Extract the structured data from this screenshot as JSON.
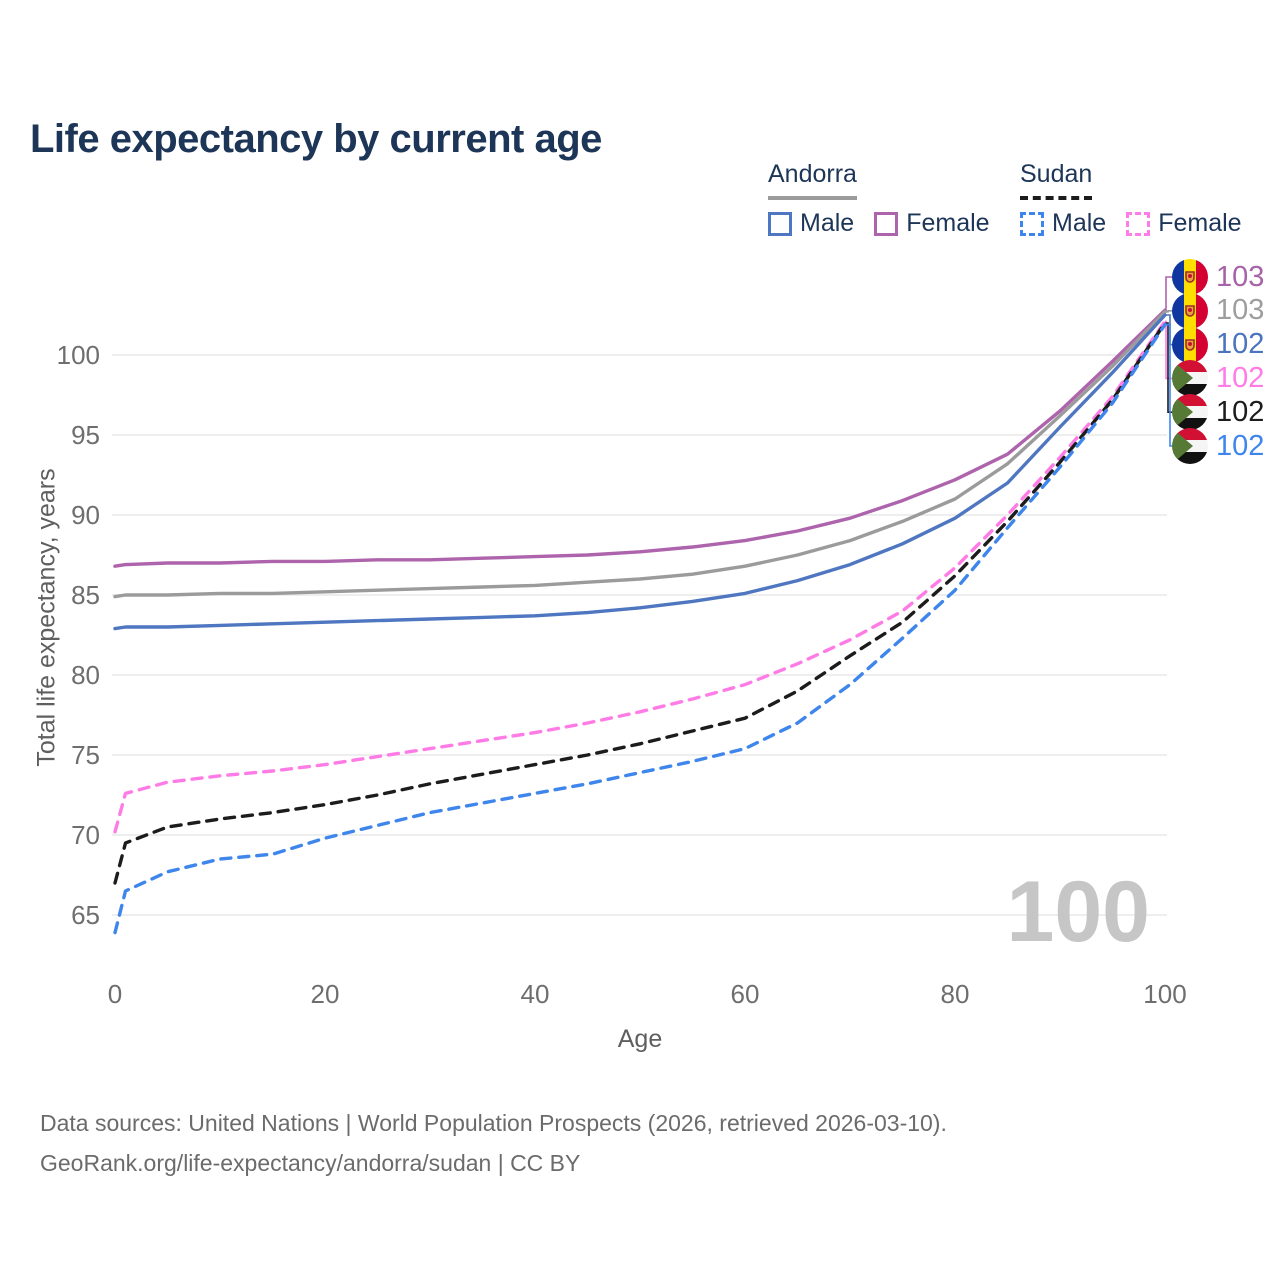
{
  "title": "Life expectancy by current age",
  "legend": {
    "groups": [
      {
        "country": "Andorra",
        "style": "solid",
        "items": [
          {
            "label": "Male",
            "color": "#4f76c0"
          },
          {
            "label": "Female",
            "color": "#ae64ac"
          }
        ]
      },
      {
        "country": "Sudan",
        "style": "dashed",
        "items": [
          {
            "label": "Male",
            "color": "#3e86ec"
          },
          {
            "label": "Female",
            "color": "#ff7ce6"
          }
        ]
      }
    ]
  },
  "chart_data": {
    "type": "line",
    "title": "Life expectancy by current age",
    "xlabel": "Age",
    "ylabel": "Total life expectancy, years",
    "xlim": [
      0,
      100
    ],
    "ylim": [
      62,
      104
    ],
    "x_ticks": [
      0,
      20,
      40,
      60,
      80,
      100
    ],
    "y_ticks": [
      65,
      70,
      75,
      80,
      85,
      90,
      95,
      100
    ],
    "grid": "horizontal-only",
    "legend_position": "top-right",
    "x": [
      0,
      1,
      5,
      10,
      15,
      20,
      25,
      30,
      35,
      40,
      45,
      50,
      55,
      60,
      65,
      70,
      75,
      80,
      85,
      90,
      95,
      100
    ],
    "series": [
      {
        "name": "Andorra Female",
        "country": "Andorra",
        "sex": "Female",
        "color": "#ae64ac",
        "dash": false,
        "end_label": "103",
        "label_row": 0,
        "values": [
          86.8,
          86.9,
          87.0,
          87.0,
          87.1,
          87.1,
          87.2,
          87.2,
          87.3,
          87.4,
          87.5,
          87.7,
          88.0,
          88.4,
          89.0,
          89.8,
          90.9,
          92.2,
          93.8,
          96.5,
          99.6,
          102.8
        ]
      },
      {
        "name": "Andorra Both sexes",
        "country": "Andorra",
        "sex": "Both",
        "color": "#9b9b9b",
        "dash": false,
        "end_label": "103",
        "label_row": 1,
        "values": [
          84.9,
          85.0,
          85.0,
          85.1,
          85.1,
          85.2,
          85.3,
          85.4,
          85.5,
          85.6,
          85.8,
          86.0,
          86.3,
          86.8,
          87.5,
          88.4,
          89.6,
          91.0,
          93.2,
          96.2,
          99.3,
          102.7
        ]
      },
      {
        "name": "Andorra Male",
        "country": "Andorra",
        "sex": "Male",
        "color": "#4f76c0",
        "dash": false,
        "end_label": "102",
        "label_row": 2,
        "values": [
          82.9,
          83.0,
          83.0,
          83.1,
          83.2,
          83.3,
          83.4,
          83.5,
          83.6,
          83.7,
          83.9,
          84.2,
          84.6,
          85.1,
          85.9,
          86.9,
          88.2,
          89.8,
          92.0,
          95.5,
          98.9,
          102.5
        ]
      },
      {
        "name": "Sudan Female",
        "country": "Sudan",
        "sex": "Female",
        "color": "#ff7ce6",
        "dash": true,
        "end_label": "102",
        "label_row": 3,
        "values": [
          70.2,
          72.6,
          73.3,
          73.7,
          74.0,
          74.4,
          74.9,
          75.4,
          75.9,
          76.4,
          77.0,
          77.7,
          78.5,
          79.4,
          80.7,
          82.2,
          84.0,
          86.7,
          90.0,
          93.6,
          97.4,
          102.1
        ]
      },
      {
        "name": "Sudan Both sexes",
        "country": "Sudan",
        "sex": "Both",
        "color": "#1c1c1c",
        "dash": true,
        "end_label": "102",
        "label_row": 4,
        "values": [
          67.0,
          69.5,
          70.5,
          71.0,
          71.4,
          71.9,
          72.5,
          73.2,
          73.8,
          74.4,
          75.0,
          75.7,
          76.5,
          77.3,
          79.0,
          81.2,
          83.3,
          86.2,
          89.6,
          93.3,
          97.2,
          102.0
        ]
      },
      {
        "name": "Sudan Male",
        "country": "Sudan",
        "sex": "Male",
        "color": "#3e86ec",
        "dash": true,
        "end_label": "102",
        "label_row": 5,
        "values": [
          63.9,
          66.5,
          67.7,
          68.5,
          68.8,
          69.8,
          70.6,
          71.4,
          72.0,
          72.6,
          73.2,
          73.9,
          74.6,
          75.4,
          77.0,
          79.4,
          82.3,
          85.3,
          89.2,
          93.0,
          97.0,
          101.9
        ]
      }
    ]
  },
  "right_labels": [
    {
      "flag": "andorra",
      "value": "103",
      "color": "#a763a7"
    },
    {
      "flag": "andorra",
      "value": "103",
      "color": "#9e9e9e"
    },
    {
      "flag": "andorra",
      "value": "102",
      "color": "#4a74bd"
    },
    {
      "flag": "sudan",
      "value": "102",
      "color": "#ff7ce6"
    },
    {
      "flag": "sudan",
      "value": "102",
      "color": "#1c1c1c"
    },
    {
      "flag": "sudan",
      "value": "102",
      "color": "#3e86ec"
    }
  ],
  "watermark": "100",
  "footer": {
    "line1": "Data sources: United Nations | World Population Prospects (2026, retrieved 2026-03-10).",
    "line2": "GeoRank.org/life-expectancy/andorra/sudan | CC BY"
  }
}
